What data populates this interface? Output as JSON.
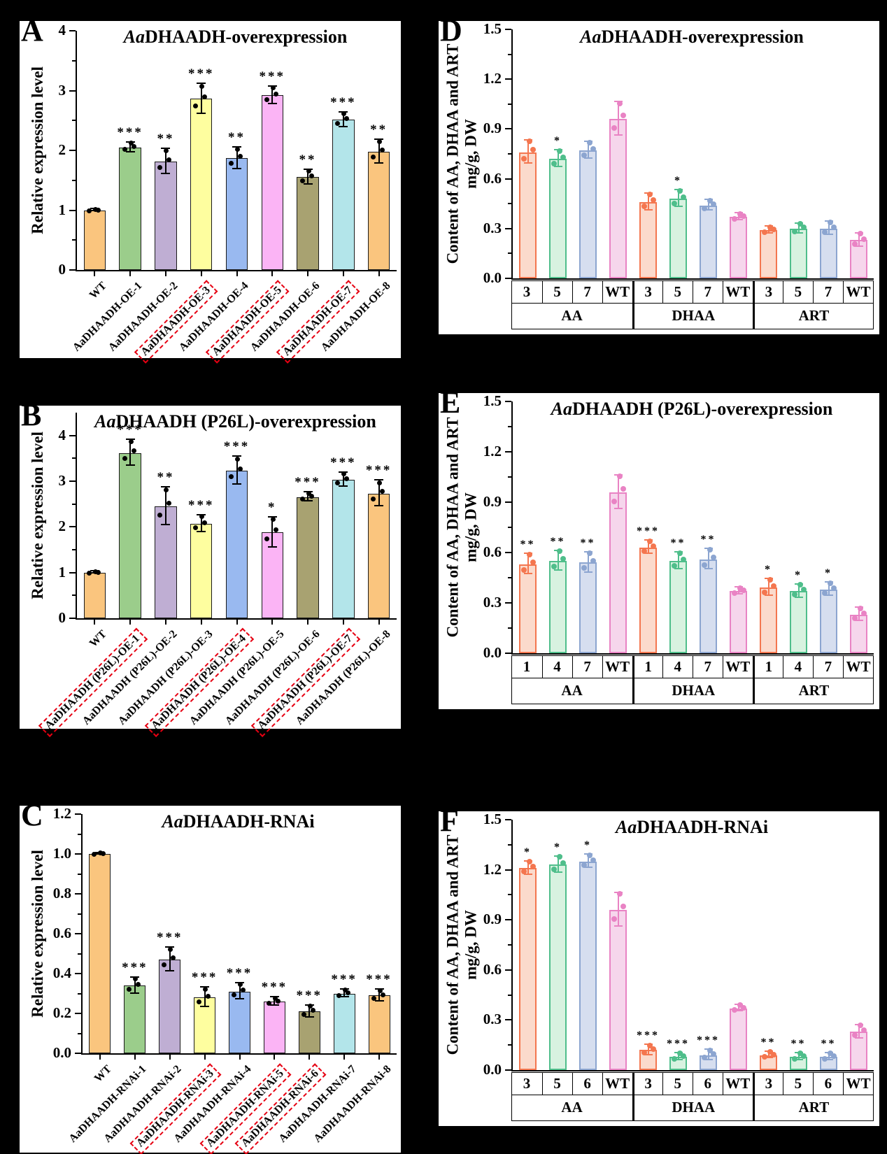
{
  "figure_bg": "#000000",
  "palette_expression": [
    "#FAC57E",
    "#9BCD8B",
    "#BFAED3",
    "#FEFE9F",
    "#99B9F0",
    "#FBB4F5",
    "#A8A271",
    "#B3E5EA",
    "#FAC57E"
  ],
  "palette_content": [
    {
      "stroke": "#F4764F",
      "fill": "#FBDACC"
    },
    {
      "stroke": "#4FBE8B",
      "fill": "#D8F2E0"
    },
    {
      "stroke": "#8CA5D0",
      "fill": "#D6DEEF"
    },
    {
      "stroke": "#E983C4",
      "fill": "#F6D6EC"
    }
  ],
  "highlight_box_color": "#e60012",
  "chart_data": [
    {
      "type": "bar",
      "letter": "A",
      "kind": "expression",
      "title_italic": "Aa",
      "title_rest": "DHAADH-overexpression",
      "ylabel": "Relative expression level",
      "ymax": 4,
      "yticks": [
        0,
        1,
        2,
        3,
        4
      ],
      "ydecimals": 0,
      "yminor_step": 0.5,
      "bars": [
        {
          "label": "WT",
          "value": 1.0,
          "err": 0.02,
          "sig": "",
          "boxed": false
        },
        {
          "label": "AaDHAADH-OE-1",
          "value": 2.05,
          "err": 0.08,
          "sig": "***",
          "boxed": false
        },
        {
          "label": "AaDHAADH-OE-2",
          "value": 1.81,
          "err": 0.21,
          "sig": "**",
          "boxed": false
        },
        {
          "label": "AaDHAADH-OE-3",
          "value": 2.86,
          "err": 0.25,
          "sig": "***",
          "boxed": true
        },
        {
          "label": "AaDHAADH-OE-4",
          "value": 1.87,
          "err": 0.18,
          "sig": "**",
          "boxed": false
        },
        {
          "label": "AaDHAADH-OE-5",
          "value": 2.92,
          "err": 0.15,
          "sig": "***",
          "boxed": true
        },
        {
          "label": "AaDHAADH-OE-6",
          "value": 1.55,
          "err": 0.12,
          "sig": "**",
          "boxed": false
        },
        {
          "label": "AaDHAADH-OE-7",
          "value": 2.51,
          "err": 0.12,
          "sig": "***",
          "boxed": true
        },
        {
          "label": "AaDHAADH-OE-8",
          "value": 1.98,
          "err": 0.2,
          "sig": "**",
          "boxed": false
        }
      ]
    },
    {
      "type": "bar",
      "letter": "B",
      "kind": "expression",
      "title_italic": "Aa",
      "title_rest": "DHAADH (P26L)-overexpression",
      "ylabel": "Relative expression level",
      "ymax": 4.5,
      "yticks": [
        0,
        1,
        2,
        3,
        4
      ],
      "ydecimals": 0,
      "yminor_step": 0.5,
      "bars": [
        {
          "label": "WT",
          "value": 1.0,
          "err": 0.02,
          "sig": "",
          "boxed": false
        },
        {
          "label": "AaDHAADH (P26L)-OE-1",
          "value": 3.62,
          "err": 0.28,
          "sig": "***",
          "boxed": true
        },
        {
          "label": "AaDHAADH (P26L)-OE-2",
          "value": 2.45,
          "err": 0.42,
          "sig": "**",
          "boxed": false
        },
        {
          "label": "AaDHAADH (P26L)-OE-3",
          "value": 2.07,
          "err": 0.18,
          "sig": "***",
          "boxed": false
        },
        {
          "label": "AaDHAADH (P26L)-OE-4",
          "value": 3.23,
          "err": 0.3,
          "sig": "***",
          "boxed": true
        },
        {
          "label": "AaDHAADH (P26L)-OE-5",
          "value": 1.88,
          "err": 0.33,
          "sig": "*",
          "boxed": false
        },
        {
          "label": "AaDHAADH (P26L)-OE-6",
          "value": 2.65,
          "err": 0.1,
          "sig": "***",
          "boxed": false
        },
        {
          "label": "AaDHAADH (P26L)-OE-7",
          "value": 3.03,
          "err": 0.15,
          "sig": "***",
          "boxed": true
        },
        {
          "label": "AaDHAADH (P26L)-OE-8",
          "value": 2.73,
          "err": 0.28,
          "sig": "***",
          "boxed": false
        }
      ]
    },
    {
      "type": "bar",
      "letter": "C",
      "kind": "expression",
      "title_italic": "Aa",
      "title_rest": "DHAADH-RNAi",
      "ylabel": "Relative expression level",
      "ymax": 1.2,
      "yticks": [
        0.0,
        0.2,
        0.4,
        0.6,
        0.8,
        1.0,
        1.2
      ],
      "ydecimals": 1,
      "yminor_step": 0.1,
      "bars": [
        {
          "label": "WT",
          "value": 1.0,
          "err": 0.005,
          "sig": "",
          "boxed": false
        },
        {
          "label": "AaDHAADH-RNAi-1",
          "value": 0.34,
          "err": 0.04,
          "sig": "***",
          "boxed": false
        },
        {
          "label": "AaDHAADH-RNAi-2",
          "value": 0.47,
          "err": 0.06,
          "sig": "***",
          "boxed": false
        },
        {
          "label": "AaDHAADH-RNAi-3",
          "value": 0.28,
          "err": 0.05,
          "sig": "***",
          "boxed": true
        },
        {
          "label": "AaDHAADH-RNAi-4",
          "value": 0.31,
          "err": 0.04,
          "sig": "***",
          "boxed": false
        },
        {
          "label": "AaDHAADH-RNAi-5",
          "value": 0.26,
          "err": 0.02,
          "sig": "***",
          "boxed": true
        },
        {
          "label": "AaDHAADH-RNAi-6",
          "value": 0.21,
          "err": 0.03,
          "sig": "***",
          "boxed": true
        },
        {
          "label": "AaDHAADH-RNAi-7",
          "value": 0.3,
          "err": 0.02,
          "sig": "***",
          "boxed": false
        },
        {
          "label": "AaDHAADH-RNAi-8",
          "value": 0.29,
          "err": 0.03,
          "sig": "***",
          "boxed": false
        }
      ]
    },
    {
      "type": "bar",
      "letter": "D",
      "kind": "content",
      "title_italic": "Aa",
      "title_rest": "DHAADH-overexpression",
      "ylabel1": "Content of AA, DHAA and ART",
      "ylabel2": "mg/g, DW",
      "ymax": 1.5,
      "yticks": [
        0.0,
        0.3,
        0.6,
        0.9,
        1.2,
        1.5
      ],
      "ydecimals": 1,
      "yminor_step": 0.15,
      "groups": [
        {
          "name": "AA",
          "bars": [
            {
              "label": "3",
              "value": 0.76,
              "err": 0.07,
              "sig": ""
            },
            {
              "label": "5",
              "value": 0.72,
              "err": 0.05,
              "sig": "*"
            },
            {
              "label": "7",
              "value": 0.77,
              "err": 0.05,
              "sig": ""
            },
            {
              "label": "WT",
              "value": 0.96,
              "err": 0.1,
              "sig": ""
            }
          ]
        },
        {
          "name": "DHAA",
          "bars": [
            {
              "label": "3",
              "value": 0.46,
              "err": 0.05,
              "sig": ""
            },
            {
              "label": "5",
              "value": 0.48,
              "err": 0.05,
              "sig": "*"
            },
            {
              "label": "7",
              "value": 0.44,
              "err": 0.03,
              "sig": ""
            },
            {
              "label": "WT",
              "value": 0.37,
              "err": 0.02,
              "sig": ""
            }
          ]
        },
        {
          "name": "ART",
          "bars": [
            {
              "label": "3",
              "value": 0.29,
              "err": 0.02,
              "sig": ""
            },
            {
              "label": "5",
              "value": 0.3,
              "err": 0.03,
              "sig": ""
            },
            {
              "label": "7",
              "value": 0.3,
              "err": 0.04,
              "sig": ""
            },
            {
              "label": "WT",
              "value": 0.23,
              "err": 0.04,
              "sig": ""
            }
          ]
        }
      ]
    },
    {
      "type": "bar",
      "letter": "E",
      "kind": "content",
      "title_italic": "Aa",
      "title_rest": "DHAADH (P26L)-overexpression",
      "ylabel1": "Content of AA, DHAA and ART",
      "ylabel2": "mg/g, DW",
      "ymax": 1.5,
      "yticks": [
        0.0,
        0.3,
        0.6,
        0.9,
        1.2,
        1.5
      ],
      "ydecimals": 1,
      "yminor_step": 0.15,
      "groups": [
        {
          "name": "AA",
          "bars": [
            {
              "label": "1",
              "value": 0.53,
              "err": 0.06,
              "sig": "**"
            },
            {
              "label": "4",
              "value": 0.55,
              "err": 0.06,
              "sig": "**"
            },
            {
              "label": "7",
              "value": 0.54,
              "err": 0.06,
              "sig": "**"
            },
            {
              "label": "WT",
              "value": 0.96,
              "err": 0.1,
              "sig": ""
            }
          ]
        },
        {
          "name": "DHAA",
          "bars": [
            {
              "label": "1",
              "value": 0.63,
              "err": 0.04,
              "sig": "***"
            },
            {
              "label": "4",
              "value": 0.55,
              "err": 0.05,
              "sig": "**"
            },
            {
              "label": "7",
              "value": 0.56,
              "err": 0.06,
              "sig": "**"
            },
            {
              "label": "WT",
              "value": 0.37,
              "err": 0.02,
              "sig": ""
            }
          ]
        },
        {
          "name": "ART",
          "bars": [
            {
              "label": "1",
              "value": 0.39,
              "err": 0.05,
              "sig": "*"
            },
            {
              "label": "4",
              "value": 0.37,
              "err": 0.04,
              "sig": "*"
            },
            {
              "label": "7",
              "value": 0.38,
              "err": 0.04,
              "sig": "*"
            },
            {
              "label": "WT",
              "value": 0.23,
              "err": 0.04,
              "sig": ""
            }
          ]
        }
      ]
    },
    {
      "type": "bar",
      "letter": "F",
      "kind": "content",
      "title_italic": "Aa",
      "title_rest": "DHAADH-RNAi",
      "ylabel1": "Content of AA, DHAA and ART",
      "ylabel2": "mg/g, DW",
      "ymax": 1.5,
      "yticks": [
        0.0,
        0.3,
        0.6,
        0.9,
        1.2,
        1.5
      ],
      "ydecimals": 1,
      "yminor_step": 0.15,
      "groups": [
        {
          "name": "AA",
          "bars": [
            {
              "label": "3",
              "value": 1.21,
              "err": 0.04,
              "sig": "*"
            },
            {
              "label": "5",
              "value": 1.23,
              "err": 0.05,
              "sig": "*"
            },
            {
              "label": "6",
              "value": 1.25,
              "err": 0.04,
              "sig": "*"
            },
            {
              "label": "WT",
              "value": 0.96,
              "err": 0.1,
              "sig": ""
            }
          ]
        },
        {
          "name": "DHAA",
          "bars": [
            {
              "label": "3",
              "value": 0.12,
              "err": 0.03,
              "sig": "***"
            },
            {
              "label": "5",
              "value": 0.08,
              "err": 0.02,
              "sig": "***"
            },
            {
              "label": "6",
              "value": 0.09,
              "err": 0.03,
              "sig": "***"
            },
            {
              "label": "WT",
              "value": 0.37,
              "err": 0.02,
              "sig": ""
            }
          ]
        },
        {
          "name": "ART",
          "bars": [
            {
              "label": "3",
              "value": 0.09,
              "err": 0.02,
              "sig": "**"
            },
            {
              "label": "5",
              "value": 0.08,
              "err": 0.02,
              "sig": "**"
            },
            {
              "label": "6",
              "value": 0.08,
              "err": 0.02,
              "sig": "**"
            },
            {
              "label": "WT",
              "value": 0.23,
              "err": 0.04,
              "sig": ""
            }
          ]
        }
      ]
    }
  ]
}
